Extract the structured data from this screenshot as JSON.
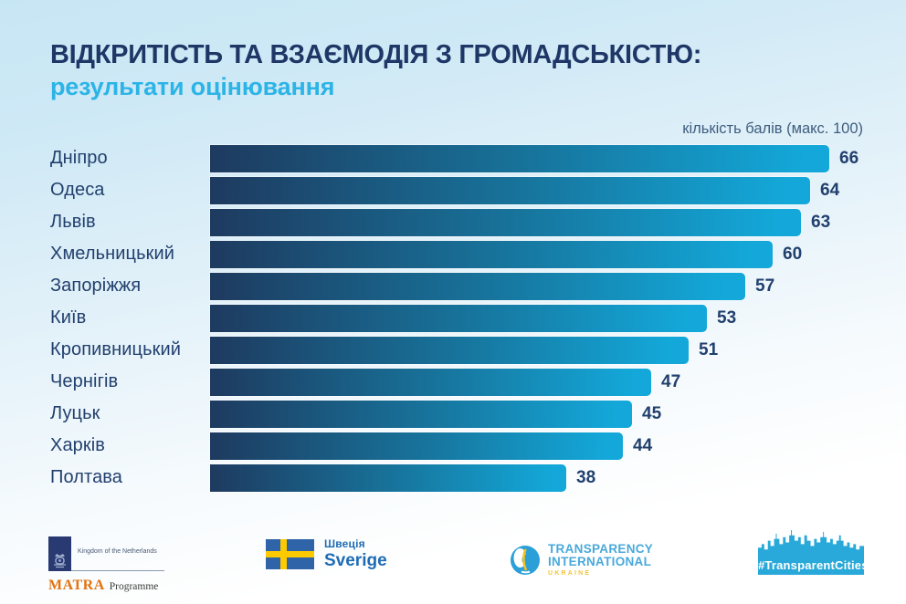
{
  "chart_data": {
    "type": "bar",
    "orientation": "horizontal",
    "title": "ВІДКРИТІСТЬ ТА ВЗАЄМОДІЯ З ГРОМАДСЬКІСТЮ:",
    "subtitle": "результати оцінювання",
    "axis_note": "кількість балів (макс. 100)",
    "max_score": 100,
    "grid": false,
    "legend": false,
    "categories": [
      "Дніпро",
      "Одеса",
      "Львів",
      "Хмельницький",
      "Запоріжжя",
      "Київ",
      "Кропивницький",
      "Чернігів",
      "Луцьк",
      "Харків",
      "Полтава"
    ],
    "values": [
      66,
      64,
      63,
      60,
      57,
      53,
      51,
      47,
      45,
      44,
      38
    ],
    "bar_gradient": [
      "#1e3a5f",
      "#17749c",
      "#13a8d9"
    ],
    "value_label_color": "#22406e"
  },
  "footer": {
    "netherlands": {
      "kingdom": "Kingdom of the Netherlands",
      "matra": "MATRA",
      "programme": "Programme"
    },
    "sweden": {
      "line1": "Швеція",
      "line2": "Sverige",
      "flag_blue": "#2f64a8",
      "flag_yellow": "#fdca00"
    },
    "transparency": {
      "line1": "TRANSPARENCY",
      "line2": "INTERNATIONAL",
      "line3": "UKRAINE"
    },
    "transparent_cities": {
      "label": "#TransparentCities",
      "accent": "#29a9d9"
    }
  },
  "colors": {
    "title": "#1e3766",
    "subtitle": "#2cb4e6",
    "background_top": "#c7e6f4",
    "background_bottom": "#ffffff"
  }
}
